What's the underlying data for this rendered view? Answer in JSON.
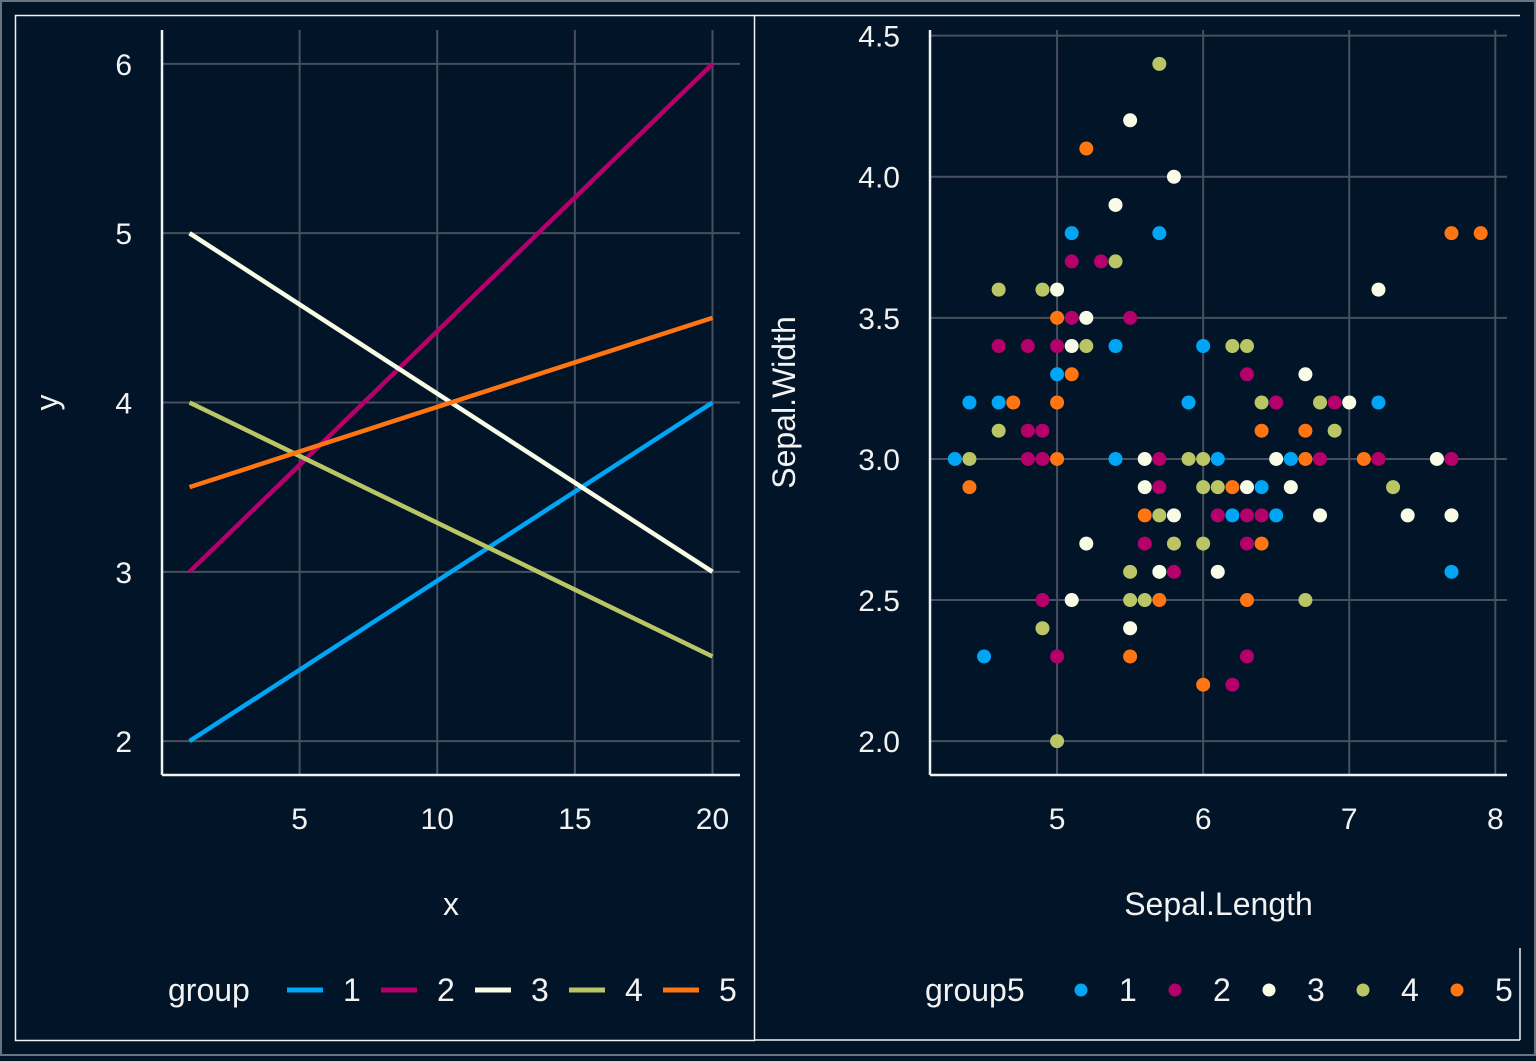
{
  "chart_data": [
    {
      "type": "line",
      "xlabel": "x",
      "ylabel": "y",
      "xlim": [
        0,
        21
      ],
      "ylim": [
        1.8,
        6.2
      ],
      "xticks": [
        5,
        10,
        15,
        20
      ],
      "yticks": [
        2,
        3,
        4,
        5,
        6
      ],
      "grid": true,
      "legend": {
        "title": "group",
        "placement": "bottom"
      },
      "series": [
        {
          "name": "1",
          "color": "#00a6f5",
          "x": [
            1,
            20
          ],
          "y": [
            2,
            4
          ]
        },
        {
          "name": "2",
          "color": "#b5006b",
          "x": [
            1,
            20
          ],
          "y": [
            3,
            6
          ]
        },
        {
          "name": "3",
          "color": "#f8fce6",
          "x": [
            1,
            20
          ],
          "y": [
            5,
            3
          ]
        },
        {
          "name": "4",
          "color": "#bac665",
          "x": [
            1,
            20
          ],
          "y": [
            4,
            2.5
          ]
        },
        {
          "name": "5",
          "color": "#ff7512",
          "x": [
            1,
            20
          ],
          "y": [
            3.5,
            4.5
          ]
        }
      ]
    },
    {
      "type": "scatter",
      "xlabel": "Sepal.Length",
      "ylabel": "Sepal.Width",
      "xlim": [
        4.13,
        8.08
      ],
      "ylim": [
        1.88,
        4.52
      ],
      "xticks": [
        5,
        6,
        7,
        8
      ],
      "yticks": [
        "2.0",
        "2.5",
        "3.0",
        "3.5",
        "4.0",
        "4.5"
      ],
      "grid": true,
      "legend": {
        "title": "group5",
        "placement": "bottom"
      },
      "groups": [
        {
          "name": "1",
          "color": "#00a6f5"
        },
        {
          "name": "2",
          "color": "#b5006b"
        },
        {
          "name": "3",
          "color": "#f8fce6"
        },
        {
          "name": "4",
          "color": "#bac665"
        },
        {
          "name": "5",
          "color": "#ff7512"
        }
      ],
      "points": [
        [
          5.7,
          4.4,
          4
        ],
        [
          5.5,
          4.2,
          3
        ],
        [
          5.2,
          4.1,
          5
        ],
        [
          5.8,
          4.0,
          3
        ],
        [
          5.4,
          3.9,
          3
        ],
        [
          5.1,
          3.8,
          1
        ],
        [
          5.7,
          3.8,
          1
        ],
        [
          7.7,
          3.8,
          5
        ],
        [
          7.9,
          3.8,
          5
        ],
        [
          5.1,
          3.7,
          2
        ],
        [
          5.3,
          3.7,
          2
        ],
        [
          5.4,
          3.7,
          4
        ],
        [
          4.6,
          3.6,
          4
        ],
        [
          4.9,
          3.6,
          4
        ],
        [
          5.0,
          3.6,
          3
        ],
        [
          7.2,
          3.6,
          3
        ],
        [
          5.0,
          3.5,
          5
        ],
        [
          5.1,
          3.5,
          2
        ],
        [
          5.2,
          3.5,
          3
        ],
        [
          5.5,
          3.5,
          2
        ],
        [
          4.6,
          3.4,
          2
        ],
        [
          4.8,
          3.4,
          2
        ],
        [
          5.0,
          3.4,
          2
        ],
        [
          5.1,
          3.4,
          3
        ],
        [
          5.2,
          3.4,
          4
        ],
        [
          5.4,
          3.4,
          1
        ],
        [
          6.0,
          3.4,
          1
        ],
        [
          6.2,
          3.4,
          4
        ],
        [
          6.3,
          3.4,
          4
        ],
        [
          5.0,
          3.3,
          1
        ],
        [
          5.1,
          3.3,
          5
        ],
        [
          6.3,
          3.3,
          2
        ],
        [
          6.7,
          3.3,
          3
        ],
        [
          4.4,
          3.2,
          1
        ],
        [
          4.6,
          3.2,
          1
        ],
        [
          4.7,
          3.2,
          5
        ],
        [
          5.0,
          3.2,
          5
        ],
        [
          5.9,
          3.2,
          1
        ],
        [
          6.4,
          3.2,
          4
        ],
        [
          6.5,
          3.2,
          2
        ],
        [
          6.8,
          3.2,
          4
        ],
        [
          6.9,
          3.2,
          2
        ],
        [
          7.0,
          3.2,
          3
        ],
        [
          7.2,
          3.2,
          1
        ],
        [
          4.6,
          3.1,
          4
        ],
        [
          4.8,
          3.1,
          2
        ],
        [
          4.9,
          3.1,
          2
        ],
        [
          6.4,
          3.1,
          5
        ],
        [
          6.7,
          3.1,
          5
        ],
        [
          6.9,
          3.1,
          4
        ],
        [
          4.3,
          3.0,
          1
        ],
        [
          4.4,
          3.0,
          4
        ],
        [
          4.8,
          3.0,
          2
        ],
        [
          4.9,
          3.0,
          2
        ],
        [
          5.0,
          3.0,
          5
        ],
        [
          5.4,
          3.0,
          1
        ],
        [
          5.6,
          3.0,
          3
        ],
        [
          5.7,
          3.0,
          2
        ],
        [
          5.9,
          3.0,
          4
        ],
        [
          6.0,
          3.0,
          4
        ],
        [
          6.1,
          3.0,
          1
        ],
        [
          6.5,
          3.0,
          3
        ],
        [
          6.6,
          3.0,
          1
        ],
        [
          6.7,
          3.0,
          5
        ],
        [
          6.8,
          3.0,
          2
        ],
        [
          7.1,
          3.0,
          5
        ],
        [
          7.2,
          3.0,
          2
        ],
        [
          7.6,
          3.0,
          3
        ],
        [
          7.7,
          3.0,
          2
        ],
        [
          4.4,
          2.9,
          5
        ],
        [
          5.6,
          2.9,
          3
        ],
        [
          5.7,
          2.9,
          2
        ],
        [
          6.0,
          2.9,
          4
        ],
        [
          6.1,
          2.9,
          4
        ],
        [
          6.2,
          2.9,
          5
        ],
        [
          6.3,
          2.9,
          3
        ],
        [
          6.4,
          2.9,
          1
        ],
        [
          6.6,
          2.9,
          3
        ],
        [
          7.3,
          2.9,
          4
        ],
        [
          5.6,
          2.8,
          5
        ],
        [
          5.7,
          2.8,
          4
        ],
        [
          5.8,
          2.8,
          3
        ],
        [
          6.1,
          2.8,
          2
        ],
        [
          6.2,
          2.8,
          1
        ],
        [
          6.3,
          2.8,
          2
        ],
        [
          6.4,
          2.8,
          2
        ],
        [
          6.5,
          2.8,
          1
        ],
        [
          6.8,
          2.8,
          3
        ],
        [
          7.4,
          2.8,
          3
        ],
        [
          7.7,
          2.8,
          3
        ],
        [
          5.2,
          2.7,
          3
        ],
        [
          5.6,
          2.7,
          2
        ],
        [
          5.8,
          2.7,
          4
        ],
        [
          6.0,
          2.7,
          4
        ],
        [
          6.3,
          2.7,
          2
        ],
        [
          6.4,
          2.7,
          5
        ],
        [
          5.5,
          2.6,
          4
        ],
        [
          5.7,
          2.6,
          3
        ],
        [
          5.8,
          2.6,
          2
        ],
        [
          6.1,
          2.6,
          3
        ],
        [
          7.7,
          2.6,
          1
        ],
        [
          4.9,
          2.5,
          2
        ],
        [
          5.1,
          2.5,
          3
        ],
        [
          5.5,
          2.5,
          4
        ],
        [
          5.6,
          2.5,
          4
        ],
        [
          5.7,
          2.5,
          5
        ],
        [
          6.3,
          2.5,
          5
        ],
        [
          6.7,
          2.5,
          4
        ],
        [
          4.9,
          2.4,
          4
        ],
        [
          5.5,
          2.4,
          3
        ],
        [
          4.5,
          2.3,
          1
        ],
        [
          5.0,
          2.3,
          2
        ],
        [
          5.5,
          2.3,
          5
        ],
        [
          6.3,
          2.3,
          2
        ],
        [
          6.0,
          2.2,
          5
        ],
        [
          6.2,
          2.2,
          2
        ],
        [
          5.0,
          2.0,
          4
        ]
      ]
    }
  ]
}
